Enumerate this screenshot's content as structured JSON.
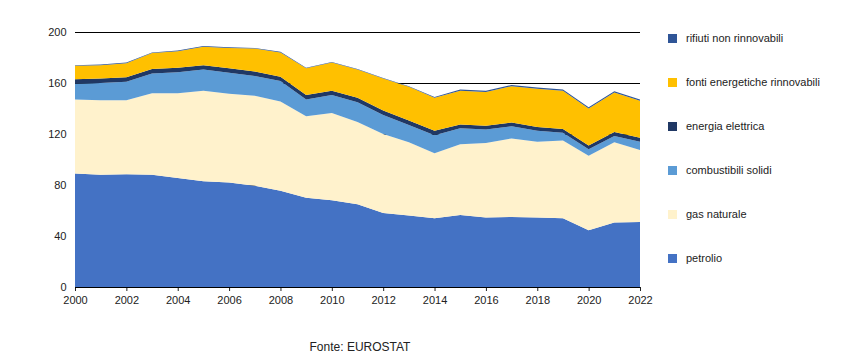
{
  "chart_data": {
    "type": "area",
    "stacked": true,
    "grid": true,
    "legend": "right",
    "caption": "Fonte: EUROSTAT",
    "x": [
      2000,
      2001,
      2002,
      2003,
      2004,
      2005,
      2006,
      2007,
      2008,
      2009,
      2010,
      2011,
      2012,
      2013,
      2014,
      2015,
      2016,
      2017,
      2018,
      2019,
      2020,
      2021,
      2022
    ],
    "xlim": [
      2000,
      2022
    ],
    "xticks": [
      2000,
      2002,
      2004,
      2006,
      2008,
      2010,
      2012,
      2014,
      2016,
      2018,
      2020,
      2022
    ],
    "ylim": [
      0,
      200
    ],
    "yticks": [
      0,
      40,
      80,
      120,
      160,
      200
    ],
    "series": [
      {
        "name": "petrolio",
        "color": "#4472c4",
        "values": [
          89,
          88,
          88.5,
          88,
          85.5,
          83,
          82,
          79.5,
          75.5,
          70,
          68,
          65,
          58,
          56,
          54,
          56.5,
          54.5,
          55,
          54.5,
          54,
          44.5,
          50.5,
          51
        ]
      },
      {
        "name": "gas naturale",
        "color": "#fff2cc",
        "values": [
          58,
          58.5,
          58,
          64,
          66.5,
          71,
          69.5,
          70.5,
          70,
          64,
          68.5,
          64.5,
          62,
          57.5,
          51,
          55.5,
          58.5,
          61.5,
          59.5,
          61,
          58.5,
          63,
          56.5
        ]
      },
      {
        "name": "combustibili solidi",
        "color": "#5b9bd5",
        "values": [
          12.5,
          13.5,
          14.5,
          15.5,
          16.5,
          16.5,
          16.5,
          15.5,
          16,
          13,
          14,
          15.5,
          15,
          13.5,
          14,
          12.5,
          10.5,
          9.5,
          8.5,
          6,
          5,
          5,
          6.5
        ]
      },
      {
        "name": "energia elettrica",
        "color": "#203864",
        "values": [
          3.5,
          3.5,
          3.5,
          3.5,
          3.5,
          3.5,
          3.5,
          3.5,
          3.5,
          3.5,
          3.5,
          3.5,
          3.5,
          3.5,
          3.5,
          3,
          3,
          3,
          3,
          3,
          3,
          3,
          3
        ]
      },
      {
        "name": "fonti energetiche rinnovabili",
        "color": "#ffc000",
        "values": [
          10.5,
          10.5,
          11,
          12.5,
          13,
          14.5,
          16,
          18,
          19,
          21,
          22,
          22,
          25,
          26.5,
          26,
          26.5,
          26.5,
          28.5,
          30,
          30,
          29,
          31,
          29
        ]
      },
      {
        "name": "rifiuti non rinnovabili",
        "color": "#2f5597",
        "values": [
          0.5,
          0.5,
          0.5,
          0.5,
          0.5,
          0.5,
          0.5,
          0.5,
          0.5,
          0.5,
          0.5,
          0.5,
          0.5,
          0.5,
          0.5,
          1,
          1,
          1,
          1,
          1,
          1,
          1,
          1
        ]
      }
    ]
  }
}
